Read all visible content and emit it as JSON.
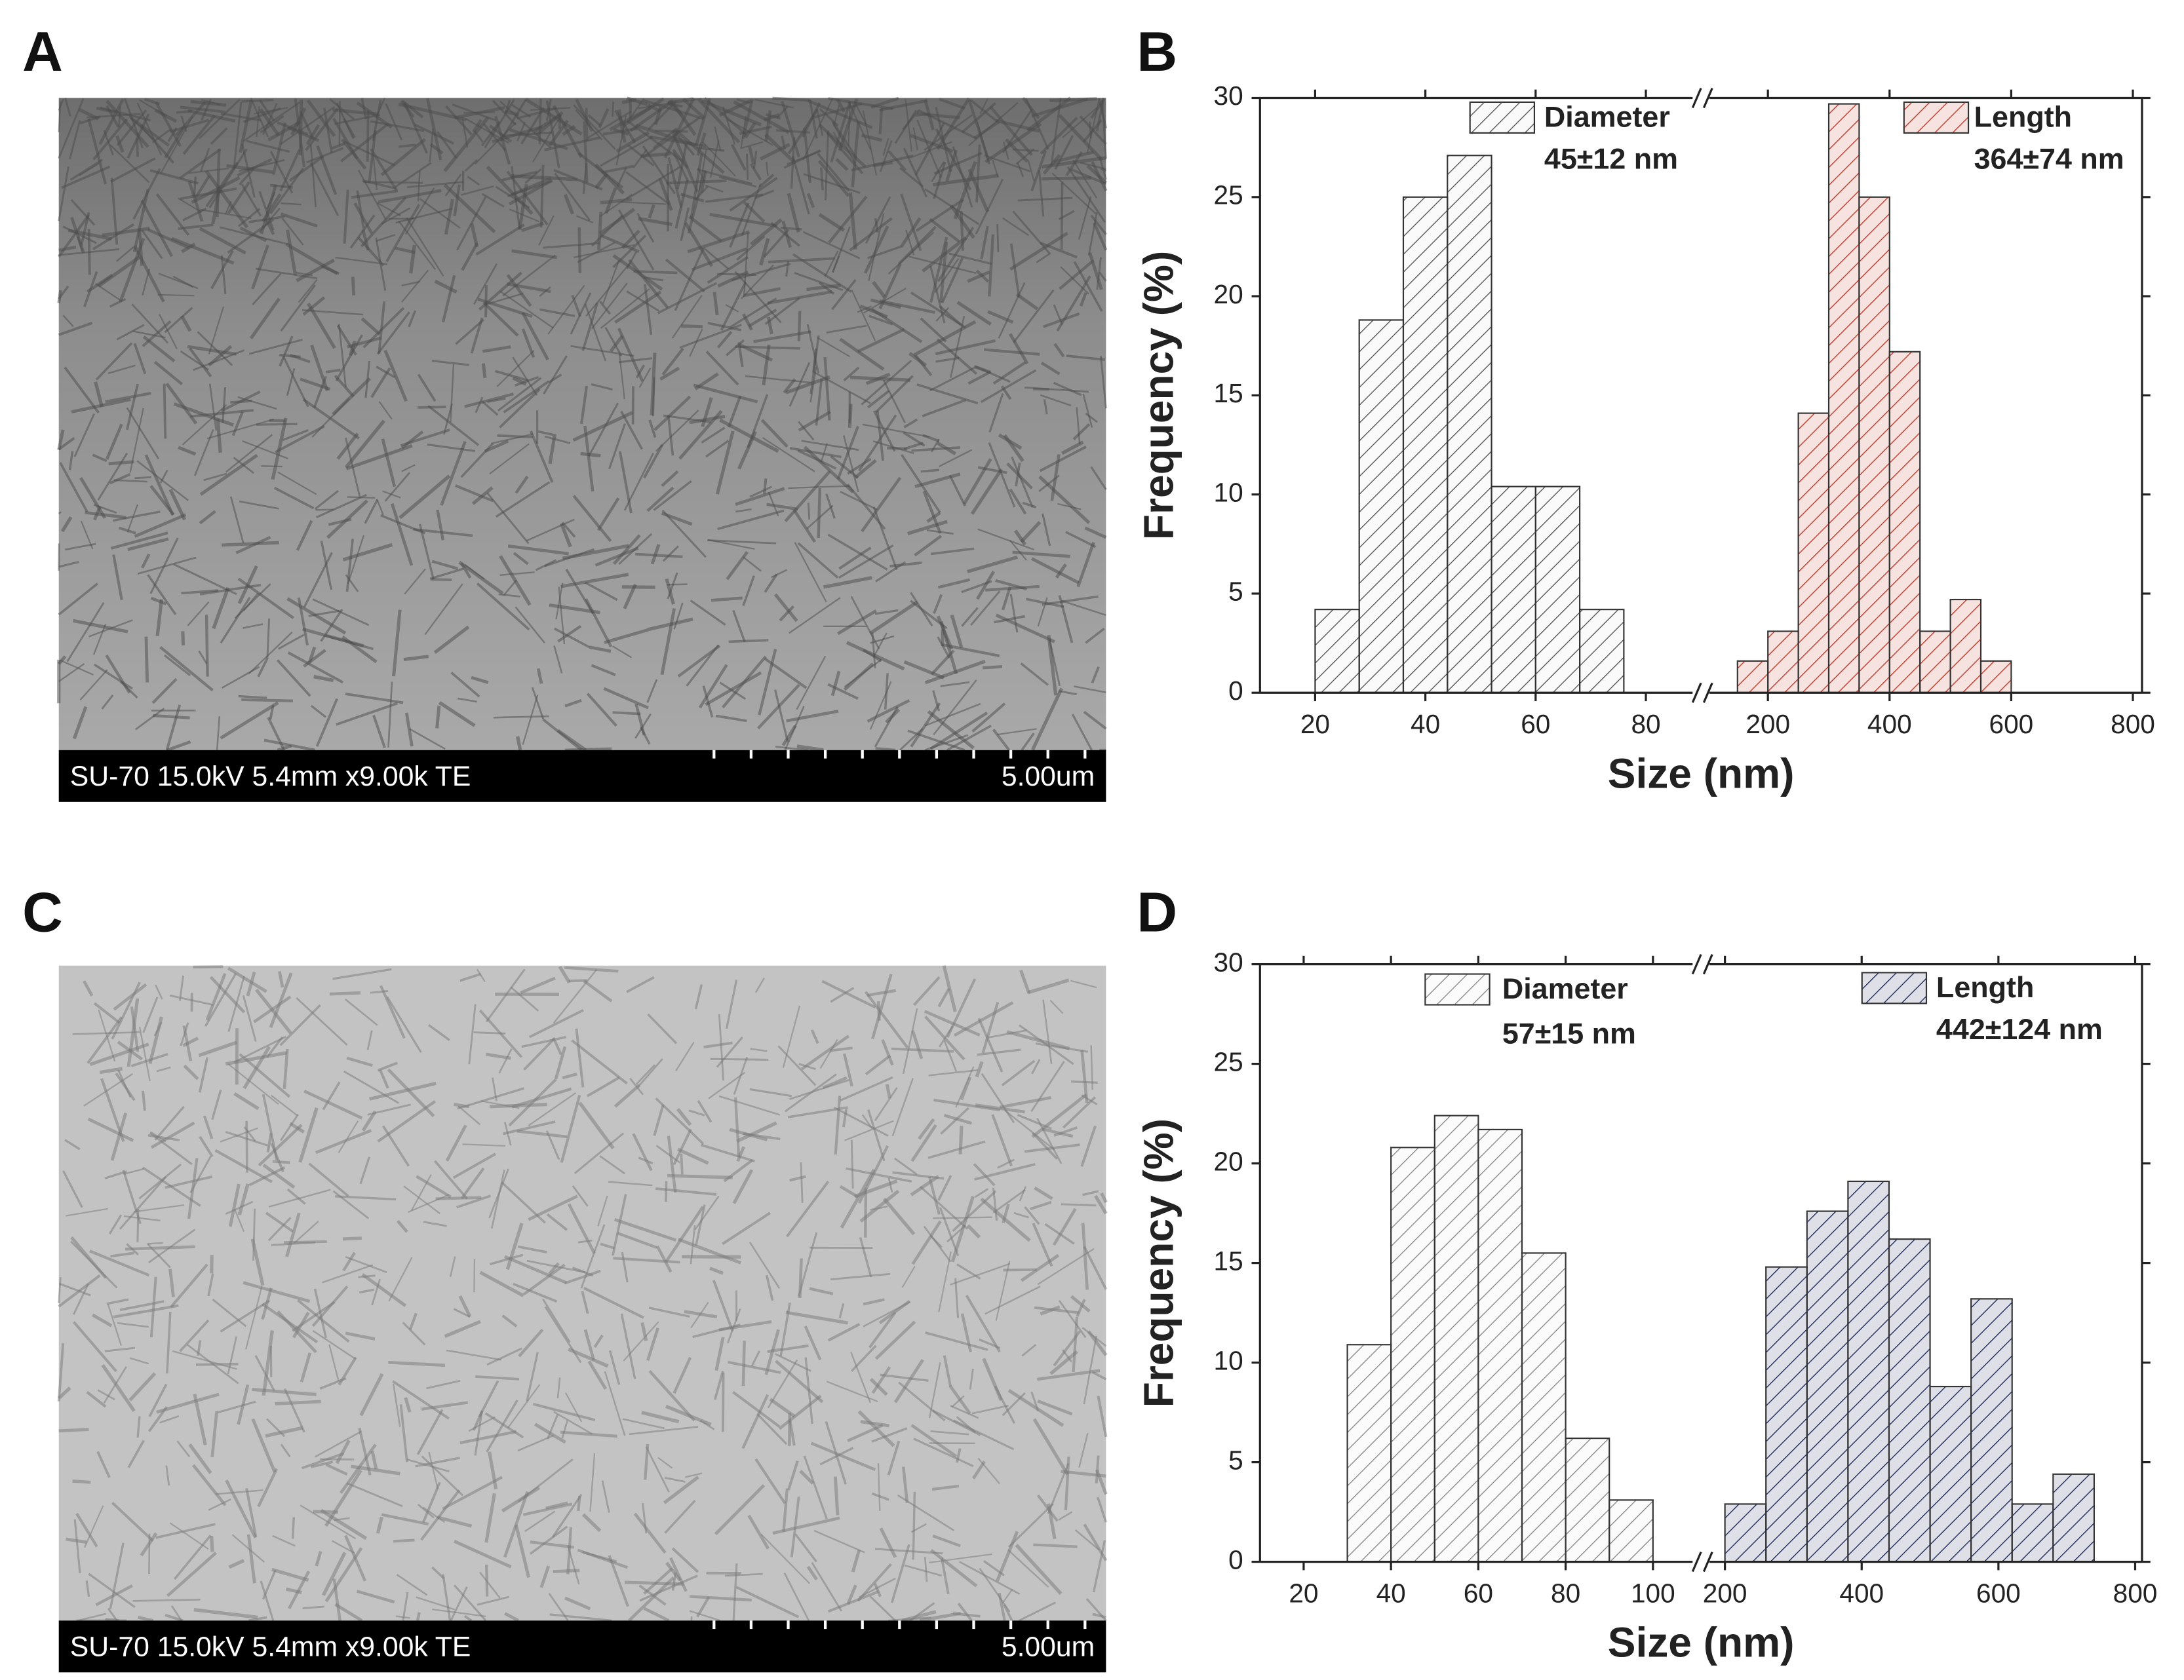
{
  "panels": {
    "labels": [
      "A",
      "B",
      "C",
      "D"
    ],
    "sem_info": [
      "SU-70 15.0kV 5.4mm x9.00k TE",
      "SU-70 15.0kV 5.4mm x9.00k TE"
    ],
    "sem_scale": [
      "5.00um",
      "5.00um"
    ]
  },
  "chart_data": [
    {
      "type": "histogram",
      "x_label": "Size (nm)",
      "y_label": "Frequency (%)",
      "xlim": [
        [
          10,
          90
        ],
        [
          90,
          815
        ]
      ],
      "xticks": [
        [
          20,
          40,
          60,
          80
        ],
        [
          200,
          400,
          600,
          800
        ]
      ],
      "ylim": [
        0,
        30
      ],
      "yticks": [
        0,
        5,
        10,
        15,
        20,
        25,
        30
      ],
      "annotations": [
        "45±12 nm",
        "364±74 nm"
      ],
      "series": [
        {
          "name": "Diameter",
          "color": "#555555",
          "segment": 0,
          "bins": [
            20,
            28,
            36,
            44,
            52,
            60,
            68,
            76
          ],
          "values": [
            4.2,
            18.8,
            25,
            27.1,
            10.4,
            10.4,
            4.2
          ]
        },
        {
          "name": "Length",
          "color": "#c0392b",
          "segment": 1,
          "bins": [
            150,
            200,
            250,
            300,
            350,
            400,
            450,
            500,
            550,
            600
          ],
          "values": [
            1.6,
            3.1,
            14.1,
            29.7,
            25,
            17.2,
            3.1,
            4.7,
            1.6
          ]
        }
      ]
    },
    {
      "type": "histogram",
      "x_label": "Size (nm)",
      "y_label": "Frequency (%)",
      "xlim": [
        [
          10,
          111
        ],
        [
          165,
          810
        ]
      ],
      "xticks": [
        [
          20,
          40,
          60,
          80,
          100
        ],
        [
          200,
          400,
          600,
          800
        ]
      ],
      "ylim": [
        0,
        30
      ],
      "yticks": [
        0,
        5,
        10,
        15,
        20,
        25,
        30
      ],
      "annotations": [
        "57±15 nm",
        "442±124 nm"
      ],
      "series": [
        {
          "name": "Diameter",
          "color": "#8a8a8a",
          "segment": 0,
          "bins": [
            30,
            40,
            50,
            60,
            70,
            80,
            90,
            100
          ],
          "values": [
            10.9,
            20.8,
            22.4,
            21.7,
            15.5,
            6.2,
            3.1
          ]
        },
        {
          "name": "Length",
          "color": "#1f2a5a",
          "segment": 1,
          "bins": [
            200,
            260,
            320,
            380,
            440,
            500,
            560,
            620,
            680,
            740
          ],
          "values": [
            2.9,
            14.8,
            17.6,
            19.1,
            16.2,
            8.8,
            13.2,
            2.9,
            4.4
          ]
        }
      ]
    }
  ]
}
